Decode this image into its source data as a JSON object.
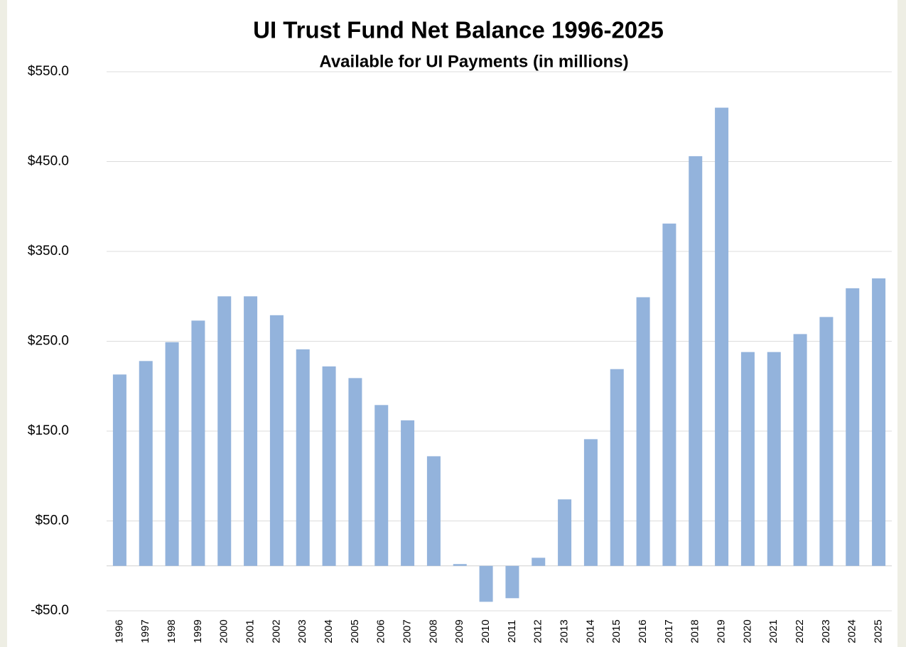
{
  "chart_data": {
    "type": "bar",
    "title": "UI Trust Fund Net Balance 1996-2025",
    "subtitle": "Available for UI Payments (in millions)",
    "categories": [
      "1996",
      "1997",
      "1998",
      "1999",
      "2000",
      "2001",
      "2002",
      "2003",
      "2004",
      "2005",
      "2006",
      "2007",
      "2008",
      "2009",
      "2010",
      "2011",
      "2012",
      "2013",
      "2014",
      "2015",
      "2016",
      "2017",
      "2018",
      "2019",
      "2020",
      "2021",
      "2022",
      "2023",
      "2024",
      "2025"
    ],
    "values": [
      213,
      228,
      249,
      273,
      300,
      300,
      279,
      241,
      222,
      209,
      179,
      162,
      122,
      2,
      -40,
      -36,
      9,
      74,
      141,
      219,
      299,
      381,
      456,
      510,
      238,
      238,
      258,
      277,
      309,
      320
    ],
    "color": "#93b3dc",
    "ylim": [
      -50,
      550
    ],
    "yticks": [
      {
        "value": -50,
        "label": "-$50.0"
      },
      {
        "value": 50,
        "label": "$50.0"
      },
      {
        "value": 150,
        "label": "$150.0"
      },
      {
        "value": 250,
        "label": "$250.0"
      },
      {
        "value": 350,
        "label": "$350.0"
      },
      {
        "value": 450,
        "label": "$450.0"
      },
      {
        "value": 550,
        "label": "$550.0"
      }
    ],
    "grid": true
  }
}
